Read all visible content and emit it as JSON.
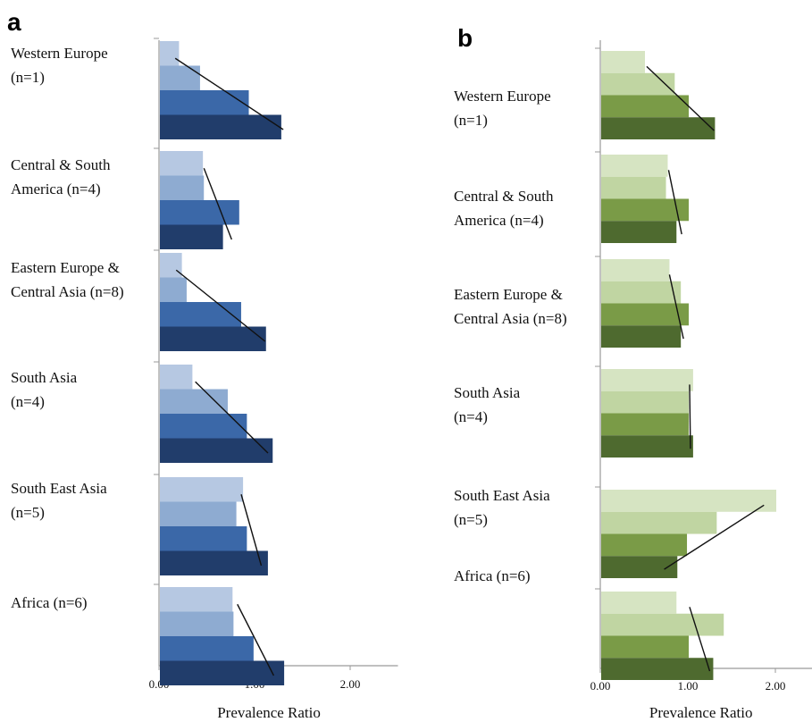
{
  "chart_data": [
    {
      "type": "bar",
      "orientation": "horizontal",
      "panel_label": "a",
      "xlabel": "Prevalence Ratio",
      "xlim": [
        0,
        2.5
      ],
      "xticks": [
        "0.00",
        "1.00",
        "2.00"
      ],
      "colors": [
        "#b6c8e2",
        "#8eabd1",
        "#3b68a8",
        "#213d6b"
      ],
      "groups": [
        {
          "label": [
            "Western Europe",
            "(n=1)"
          ],
          "values": [
            0.2,
            0.42,
            0.93,
            1.27
          ],
          "trend": [
            0.17,
            1.3
          ]
        },
        {
          "label": [
            "Central & South",
            "America (n=4)"
          ],
          "values": [
            0.45,
            0.46,
            0.83,
            0.66
          ],
          "trend": [
            0.47,
            0.76
          ]
        },
        {
          "label": [
            "Eastern Europe &",
            "Central Asia (n=8)"
          ],
          "values": [
            0.23,
            0.28,
            0.85,
            1.11
          ],
          "trend": [
            0.18,
            1.11
          ]
        },
        {
          "label": [
            "South Asia",
            "(n=4)"
          ],
          "values": [
            0.34,
            0.71,
            0.91,
            1.18
          ],
          "trend": [
            0.38,
            1.14
          ]
        },
        {
          "label": [
            "South East Asia",
            "(n=5)"
          ],
          "values": [
            0.87,
            0.8,
            0.91,
            1.13
          ],
          "trend": [
            0.86,
            1.07
          ]
        },
        {
          "label": [
            "Africa (n=6)"
          ],
          "values": [
            0.76,
            0.77,
            0.98,
            1.3
          ],
          "trend": [
            0.82,
            1.2
          ]
        }
      ]
    },
    {
      "type": "bar",
      "orientation": "horizontal",
      "panel_label": "b",
      "xlabel": "Prevalence Ratio",
      "xlim": [
        0,
        2.5
      ],
      "xticks": [
        "0.00",
        "1.00",
        "2.00"
      ],
      "colors": [
        "#d6e4c2",
        "#c0d5a2",
        "#7a9b47",
        "#4e6a2f"
      ],
      "groups": [
        {
          "label": [
            "Western Europe",
            "(n=1)"
          ],
          "values": [
            0.5,
            0.84,
            1.0,
            1.3
          ],
          "trend": [
            0.53,
            1.3
          ]
        },
        {
          "label": [
            "Central & South",
            "America (n=4)"
          ],
          "values": [
            0.76,
            0.74,
            1.0,
            0.86
          ],
          "trend": [
            0.78,
            0.93
          ]
        },
        {
          "label": [
            "Eastern Europe &",
            "Central Asia (n=8)"
          ],
          "values": [
            0.78,
            0.91,
            1.0,
            0.91
          ],
          "trend": [
            0.79,
            0.95
          ]
        },
        {
          "label": [
            "South Asia",
            "(n=4)"
          ],
          "values": [
            1.05,
            1.0,
            1.0,
            1.05
          ],
          "trend": [
            1.02,
            1.03
          ]
        },
        {
          "label": [
            "South East Asia",
            "(n=5)"
          ],
          "values": [
            2.0,
            1.32,
            0.98,
            0.87
          ],
          "trend": [
            1.87,
            0.73
          ]
        },
        {
          "label": [
            "Africa (n=6)"
          ],
          "values": [
            0.86,
            1.4,
            1.0,
            1.28
          ],
          "trend": [
            1.02,
            1.25
          ]
        }
      ]
    }
  ]
}
